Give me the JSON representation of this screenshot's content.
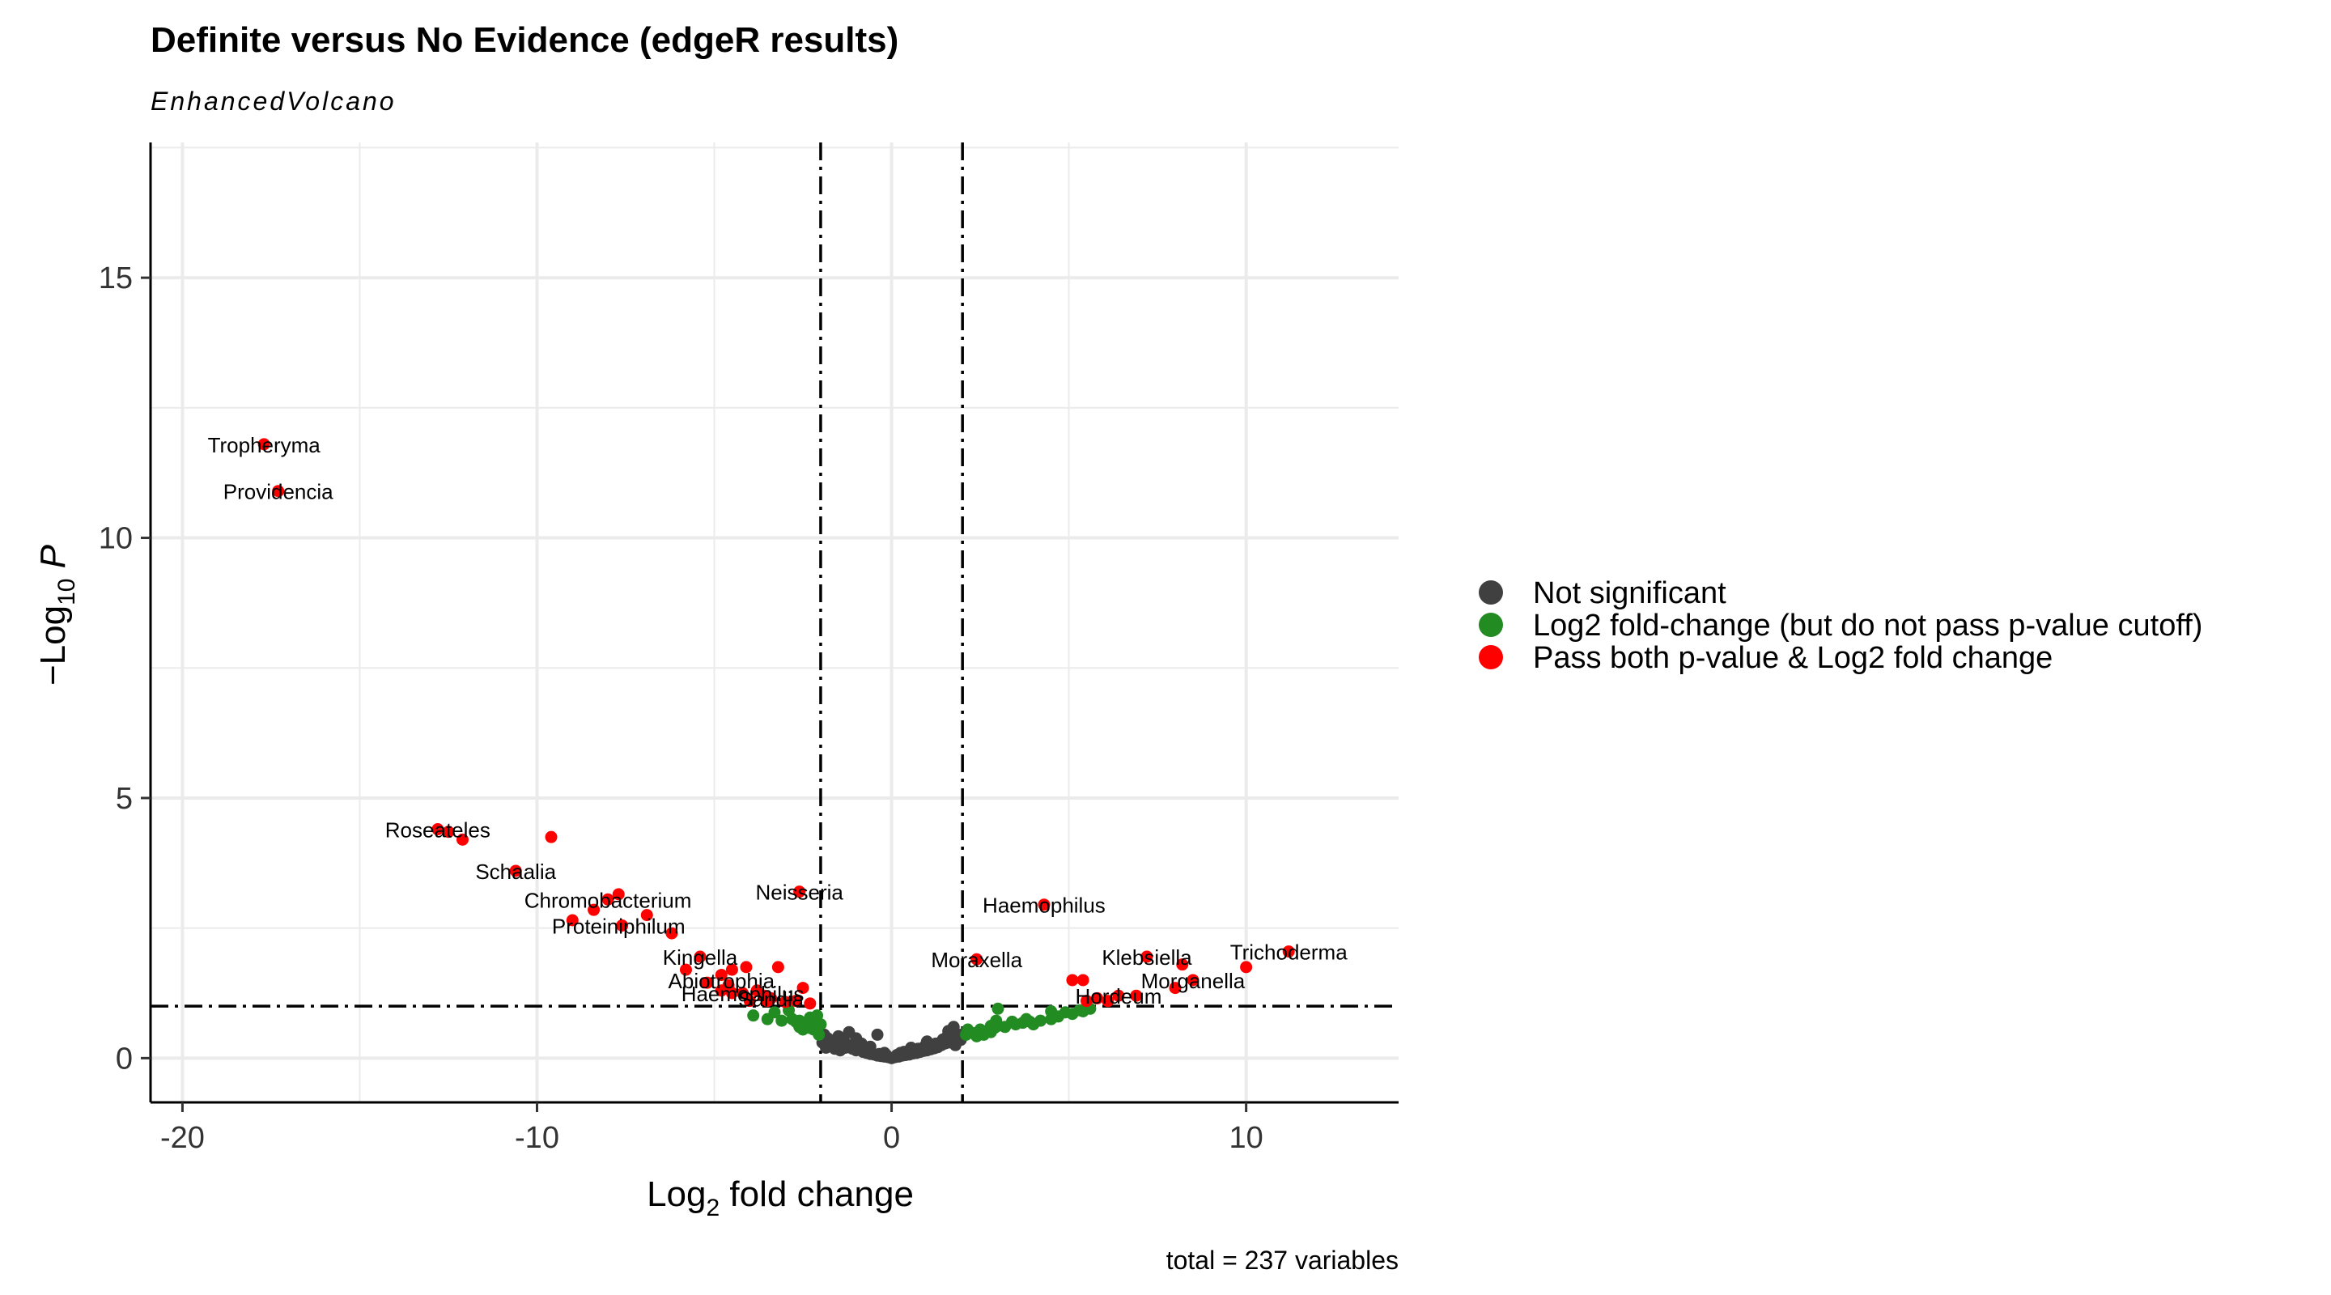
{
  "chart_data": {
    "type": "scatter",
    "title": "Definite versus No Evidence (edgeR results)",
    "subtitle": "EnhancedVolcano",
    "xlabel": {
      "base": "Log",
      "sub": "2",
      "rest": " fold change"
    },
    "ylabel": {
      "prefix": "−Log",
      "sub": "10",
      "var": " P"
    },
    "caption": "total = 237 variables",
    "xlim": [
      -20.9,
      14.3
    ],
    "ylim": [
      -0.85,
      17.6
    ],
    "x_ticks": [
      -20,
      -10,
      0,
      10
    ],
    "x_tick_labels": [
      "-20",
      "-10",
      "0",
      "10"
    ],
    "y_ticks": [
      0,
      5,
      10,
      15
    ],
    "y_tick_labels": [
      "0",
      "5",
      "10",
      "15"
    ],
    "grid": true,
    "fc_cutoff": 2,
    "p_cutoff_log10": 1,
    "legend_position": "right",
    "colors": {
      "ns": "#404040",
      "fc": "#228B22",
      "both": "#FF0000"
    },
    "series": [
      {
        "name": "Not significant",
        "color": "#404040",
        "points": [
          [
            -1.9,
            0.45
          ],
          [
            -1.8,
            0.38
          ],
          [
            -1.7,
            0.3
          ],
          [
            -1.6,
            0.33
          ],
          [
            -1.5,
            0.27
          ],
          [
            -1.4,
            0.24
          ],
          [
            -1.3,
            0.2
          ],
          [
            -1.2,
            0.22
          ],
          [
            -1.1,
            0.18
          ],
          [
            -1.0,
            0.15
          ],
          [
            -0.9,
            0.17
          ],
          [
            -0.8,
            0.12
          ],
          [
            -0.7,
            0.1
          ],
          [
            -0.6,
            0.08
          ],
          [
            -0.5,
            0.07
          ],
          [
            -0.4,
            0.05
          ],
          [
            -0.3,
            0.04
          ],
          [
            -0.2,
            0.03
          ],
          [
            -0.1,
            0.02
          ],
          [
            0.0,
            0.0
          ],
          [
            0.1,
            0.02
          ],
          [
            0.2,
            0.03
          ],
          [
            0.3,
            0.05
          ],
          [
            0.4,
            0.06
          ],
          [
            0.5,
            0.07
          ],
          [
            0.6,
            0.09
          ],
          [
            0.7,
            0.1
          ],
          [
            0.8,
            0.12
          ],
          [
            0.9,
            0.14
          ],
          [
            1.0,
            0.15
          ],
          [
            1.1,
            0.17
          ],
          [
            1.2,
            0.19
          ],
          [
            1.3,
            0.21
          ],
          [
            1.4,
            0.25
          ],
          [
            1.5,
            0.28
          ],
          [
            1.6,
            0.3
          ],
          [
            1.7,
            0.33
          ],
          [
            1.8,
            0.38
          ],
          [
            1.9,
            0.45
          ],
          [
            -1.2,
            0.5
          ],
          [
            -1.0,
            0.38
          ],
          [
            -0.4,
            0.45
          ],
          [
            -1.5,
            0.42
          ],
          [
            1.0,
            0.32
          ],
          [
            1.6,
            0.52
          ],
          [
            -0.85,
            0.28
          ],
          [
            0.55,
            0.2
          ],
          [
            -0.6,
            0.22
          ],
          [
            0.35,
            0.12
          ],
          [
            -0.2,
            0.1
          ],
          [
            1.8,
            0.25
          ],
          [
            -1.85,
            0.2
          ],
          [
            -1.6,
            0.18
          ],
          [
            1.75,
            0.6
          ],
          [
            -1.35,
            0.35
          ],
          [
            0.25,
            0.1
          ],
          [
            0.75,
            0.18
          ],
          [
            -0.15,
            0.06
          ],
          [
            1.25,
            0.28
          ],
          [
            -1.1,
            0.25
          ],
          [
            0.95,
            0.24
          ],
          [
            1.45,
            0.36
          ],
          [
            -1.95,
            0.3
          ],
          [
            1.95,
            0.35
          ],
          [
            -0.35,
            0.08
          ],
          [
            0.15,
            0.06
          ],
          [
            -1.45,
            0.15
          ],
          [
            1.55,
            0.4
          ]
        ]
      },
      {
        "name": "Log2 fold-change (but do not pass p-value cutoff)",
        "color": "#228B22",
        "points": [
          [
            -2.05,
            0.45
          ],
          [
            -2.1,
            0.55
          ],
          [
            -2.2,
            0.55
          ],
          [
            -2.3,
            0.58
          ],
          [
            -2.4,
            0.6
          ],
          [
            -2.5,
            0.55
          ],
          [
            -2.6,
            0.6
          ],
          [
            -2.2,
            0.72
          ],
          [
            -2.4,
            0.68
          ],
          [
            -2.0,
            0.65
          ],
          [
            -2.1,
            0.82
          ],
          [
            -2.3,
            0.78
          ],
          [
            -2.6,
            0.72
          ],
          [
            -2.8,
            0.75
          ],
          [
            -3.1,
            0.72
          ],
          [
            -3.5,
            0.75
          ],
          [
            -3.9,
            0.82
          ],
          [
            -3.3,
            0.88
          ],
          [
            -2.9,
            0.92
          ],
          [
            -2.7,
            0.7
          ],
          [
            2.1,
            0.45
          ],
          [
            2.2,
            0.5
          ],
          [
            2.4,
            0.42
          ],
          [
            2.6,
            0.45
          ],
          [
            2.7,
            0.52
          ],
          [
            2.8,
            0.5
          ],
          [
            2.9,
            0.58
          ],
          [
            3.0,
            0.62
          ],
          [
            3.2,
            0.6
          ],
          [
            3.5,
            0.65
          ],
          [
            3.7,
            0.68
          ],
          [
            3.9,
            0.7
          ],
          [
            4.2,
            0.72
          ],
          [
            4.5,
            0.75
          ],
          [
            4.7,
            0.8
          ],
          [
            5.1,
            0.85
          ],
          [
            5.4,
            0.9
          ],
          [
            5.6,
            0.95
          ],
          [
            5.3,
            0.92
          ],
          [
            4.0,
            0.65
          ],
          [
            3.4,
            0.7
          ],
          [
            2.95,
            0.72
          ],
          [
            3.0,
            0.95
          ],
          [
            4.5,
            0.9
          ],
          [
            2.5,
            0.55
          ],
          [
            2.3,
            0.48
          ],
          [
            2.15,
            0.55
          ],
          [
            3.8,
            0.75
          ],
          [
            4.9,
            0.88
          ],
          [
            5.5,
            0.95
          ],
          [
            2.8,
            0.62
          ]
        ]
      },
      {
        "name": "Pass both p-value & Log2 fold change",
        "color": "#FF0000",
        "points": [
          [
            -17.7,
            11.8
          ],
          [
            -17.3,
            10.9
          ],
          [
            -12.8,
            4.4
          ],
          [
            -12.5,
            4.35
          ],
          [
            -12.1,
            4.2
          ],
          [
            -9.6,
            4.25
          ],
          [
            -10.6,
            3.6
          ],
          [
            -8.4,
            2.85
          ],
          [
            -8.0,
            3.05
          ],
          [
            -7.7,
            3.15
          ],
          [
            -7.6,
            2.55
          ],
          [
            -9.0,
            2.65
          ],
          [
            -6.9,
            2.75
          ],
          [
            -6.2,
            2.4
          ],
          [
            -5.4,
            1.95
          ],
          [
            -5.2,
            1.45
          ],
          [
            -5.8,
            1.7
          ],
          [
            -4.8,
            1.6
          ],
          [
            -4.6,
            1.4
          ],
          [
            -4.8,
            1.3
          ],
          [
            -4.5,
            1.25
          ],
          [
            -4.2,
            1.25
          ],
          [
            -3.8,
            1.3
          ],
          [
            -3.6,
            1.2
          ],
          [
            -3.4,
            1.15
          ],
          [
            -4.1,
            1.75
          ],
          [
            -4.5,
            1.7
          ],
          [
            -3.2,
            1.75
          ],
          [
            -2.6,
            3.2
          ],
          [
            -2.5,
            1.35
          ],
          [
            -4.0,
            1.1
          ],
          [
            -3.5,
            1.1
          ],
          [
            -3.0,
            1.08
          ],
          [
            -2.3,
            1.05
          ],
          [
            -2.7,
            1.1
          ],
          [
            2.4,
            1.9
          ],
          [
            4.3,
            2.95
          ],
          [
            5.1,
            1.5
          ],
          [
            5.4,
            1.5
          ],
          [
            5.5,
            1.1
          ],
          [
            5.8,
            1.15
          ],
          [
            6.1,
            1.1
          ],
          [
            6.4,
            1.2
          ],
          [
            6.9,
            1.2
          ],
          [
            7.2,
            1.95
          ],
          [
            8.0,
            1.35
          ],
          [
            8.2,
            1.8
          ],
          [
            8.5,
            1.5
          ],
          [
            10.0,
            1.75
          ],
          [
            11.2,
            2.05
          ]
        ]
      }
    ],
    "labels": [
      {
        "text": "Tropheryma",
        "x": -17.7,
        "y": 11.8
      },
      {
        "text": "Providencia",
        "x": -17.3,
        "y": 10.9
      },
      {
        "text": "Roseateles",
        "x": -12.8,
        "y": 4.4
      },
      {
        "text": "Schaalia",
        "x": -10.6,
        "y": 3.6
      },
      {
        "text": "Chromobacterium",
        "x": -8.0,
        "y": 3.05
      },
      {
        "text": "Proteiniphilum",
        "x": -7.7,
        "y": 2.55
      },
      {
        "text": "Neisseria",
        "x": -2.6,
        "y": 3.2
      },
      {
        "text": "Kingella",
        "x": -5.4,
        "y": 1.95
      },
      {
        "text": "Abiotrophia",
        "x": -4.8,
        "y": 1.5
      },
      {
        "text": "Haemophilus",
        "x": 4.3,
        "y": 2.95
      },
      {
        "text": "Moraxella",
        "x": 2.4,
        "y": 1.9
      },
      {
        "text": "Klebsiella",
        "x": 7.2,
        "y": 1.95
      },
      {
        "text": "Trichoderma",
        "x": 11.2,
        "y": 2.05
      },
      {
        "text": "Morganella",
        "x": 8.5,
        "y": 1.5
      },
      {
        "text": "Hordeum",
        "x": 6.4,
        "y": 1.2
      },
      {
        "text": "Haemophilus",
        "x": -4.2,
        "y": 1.25
      },
      {
        "text": "Sandia",
        "x": -3.4,
        "y": 1.15
      }
    ]
  }
}
